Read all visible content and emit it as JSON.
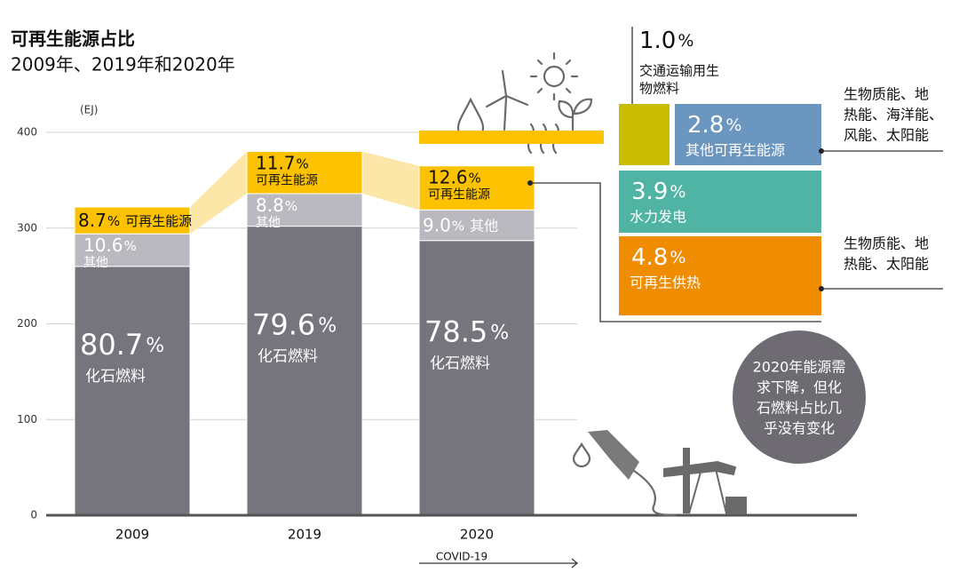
{
  "chart_data": {
    "type": "stacked_bar",
    "title": "可再生能源占比",
    "subtitle": "2009年、2019年和2020年",
    "y_unit": "(EJ)",
    "categories": [
      "2009",
      "2019",
      "2020"
    ],
    "ylim": [
      0,
      400
    ],
    "yticks": [
      0,
      100,
      200,
      300,
      400
    ],
    "grid": true,
    "share_unit": "%",
    "series": [
      {
        "name": "化石燃料",
        "color": "#76747c",
        "values": [
          260,
          302,
          287
        ],
        "shares": [
          80.7,
          79.6,
          78.5
        ]
      },
      {
        "name": "其他",
        "color": "#bab9bf",
        "values": [
          34,
          34,
          32
        ],
        "shares": [
          10.6,
          8.8,
          {
            "value": 9.0,
            "label": "9.0"
          }
        ]
      },
      {
        "name": "可再生能源",
        "color": "#fcc200",
        "values": [
          28,
          44,
          46
        ],
        "shares": [
          8.7,
          11.7,
          12.6
        ]
      }
    ],
    "breakdown": [
      {
        "name": [
          "交通运输用生",
          "物燃料"
        ],
        "share": {
          "value": 1.0,
          "label": "1.0"
        },
        "color": "#c8bd00"
      },
      {
        "name": [
          "其他可再生能源"
        ],
        "share": 2.8,
        "color": "#6b96c0"
      },
      {
        "name": [
          "水力发电"
        ],
        "share": 3.9,
        "color": "#4fb4a3"
      },
      {
        "name": [
          "可再生供热"
        ],
        "share": 4.8,
        "color": "#f08c00"
      }
    ],
    "notes": [
      [
        "生物质能、地",
        "热能、海洋能、",
        "风能、太阳能"
      ],
      [
        "生物质能、地",
        "热能、太阳能"
      ],
      [
        "2020年能源需",
        "求下降，但化",
        "石燃料占比几",
        "乎没有变化"
      ]
    ],
    "period_label": "COVID-19"
  }
}
